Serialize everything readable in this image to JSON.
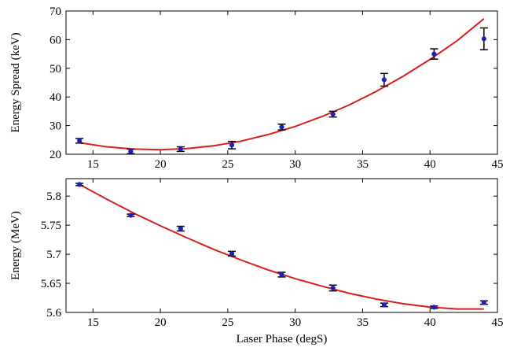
{
  "chart_data": [
    {
      "type": "scatter",
      "xlabel": "",
      "ylabel": "Energy Spread (keV)",
      "xlim": [
        13,
        45
      ],
      "ylim": [
        20,
        70
      ],
      "xticks": [
        15,
        20,
        25,
        30,
        35,
        40,
        45
      ],
      "yticks": [
        20,
        30,
        40,
        50,
        60,
        70
      ],
      "grid": false,
      "series": [
        {
          "kind": "points-with-error",
          "color": "#1f1fbf",
          "x": [
            14.0,
            17.8,
            21.5,
            25.3,
            29.0,
            32.8,
            36.6,
            40.3,
            44.0
          ],
          "y": [
            24.7,
            21.0,
            21.8,
            23.2,
            29.5,
            34.0,
            46.0,
            55.0,
            60.3
          ],
          "err": [
            0.8,
            0.8,
            0.8,
            1.3,
            1.0,
            1.0,
            2.2,
            1.8,
            3.8
          ]
        },
        {
          "kind": "fit-line",
          "color": "#d81f1f",
          "x": [
            14,
            16,
            18,
            20,
            22,
            24,
            26,
            28,
            30,
            32,
            34,
            36,
            38,
            40,
            42,
            44
          ],
          "y": [
            24.0,
            22.6,
            21.8,
            21.6,
            22.0,
            23.0,
            24.6,
            26.9,
            29.7,
            33.2,
            37.2,
            41.9,
            47.2,
            53.1,
            59.6,
            67.3
          ]
        }
      ]
    },
    {
      "type": "scatter",
      "xlabel": "Laser Phase (degS)",
      "ylabel": "Energy (MeV)",
      "xlim": [
        13,
        45
      ],
      "ylim": [
        5.6,
        5.83
      ],
      "xticks": [
        15,
        20,
        25,
        30,
        35,
        40,
        45
      ],
      "yticks": [
        5.6,
        5.65,
        5.7,
        5.75,
        5.8
      ],
      "ytick_labels": [
        "5.6",
        "5.65",
        "5.7",
        "5.75",
        "5.8"
      ],
      "grid": false,
      "series": [
        {
          "kind": "points-with-error",
          "color": "#1f1fbf",
          "x": [
            14.0,
            17.8,
            21.5,
            25.3,
            29.0,
            32.8,
            36.6,
            40.3,
            44.0
          ],
          "y": [
            5.82,
            5.767,
            5.744,
            5.701,
            5.665,
            5.642,
            5.613,
            5.609,
            5.617
          ],
          "err": [
            0.002,
            0.002,
            0.004,
            0.004,
            0.004,
            0.005,
            0.003,
            0.002,
            0.003
          ]
        },
        {
          "kind": "fit-line",
          "color": "#d81f1f",
          "x": [
            14,
            16,
            18,
            20,
            22,
            24,
            26,
            28,
            30,
            32,
            34,
            36,
            38,
            40,
            42,
            44
          ],
          "y": [
            5.82,
            5.795,
            5.771,
            5.749,
            5.728,
            5.708,
            5.69,
            5.673,
            5.658,
            5.645,
            5.633,
            5.623,
            5.615,
            5.609,
            5.606,
            5.606
          ]
        }
      ]
    }
  ]
}
